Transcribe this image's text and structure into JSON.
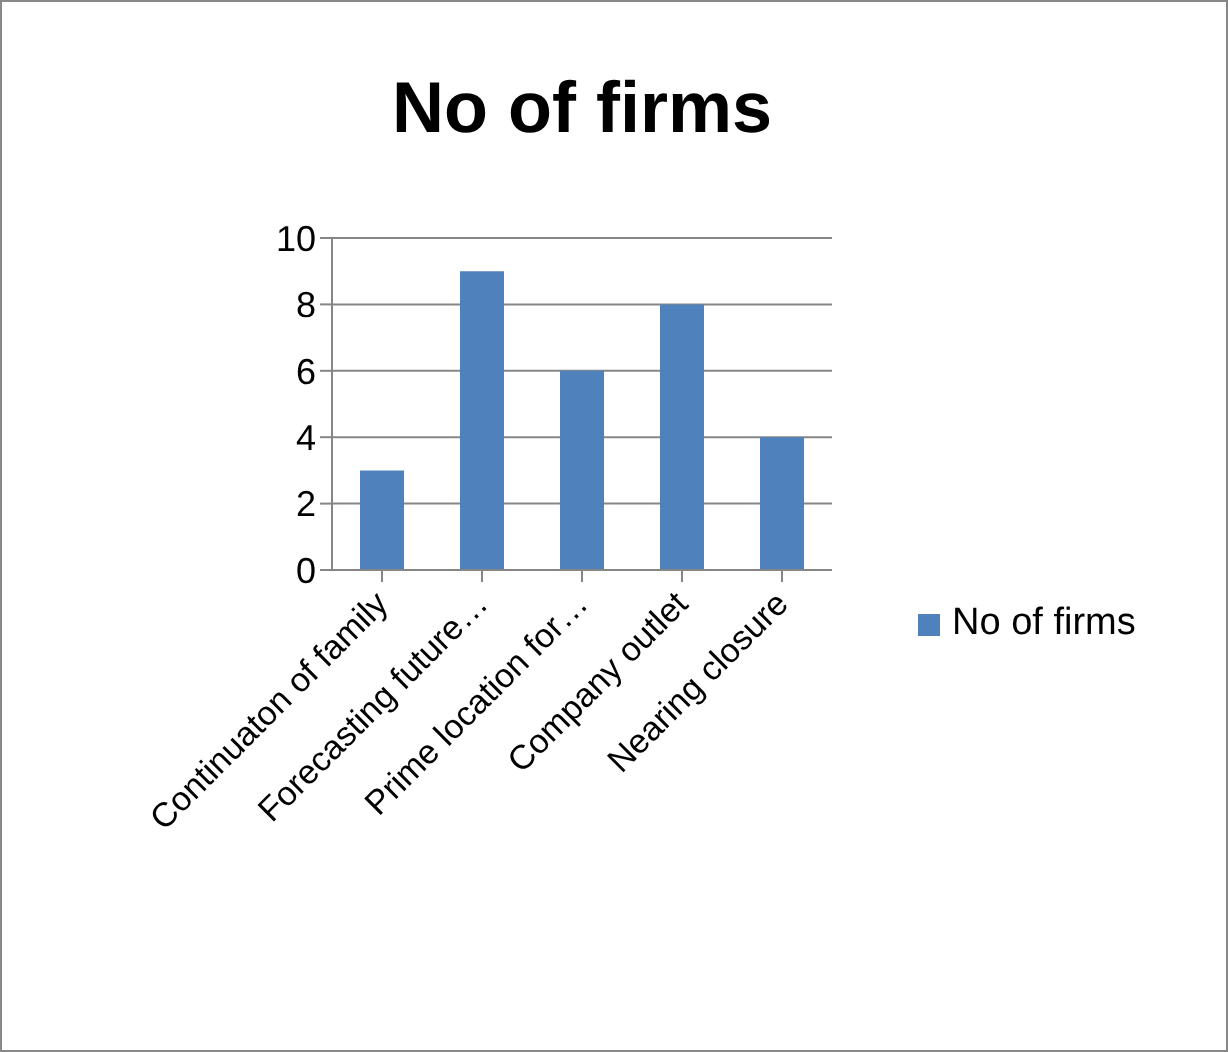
{
  "chart_data": {
    "type": "bar",
    "title": "No of firms",
    "categories": [
      "Continuaton of family",
      "Forecasting future…",
      "Prime location for…",
      "Company outlet",
      "Nearing closure"
    ],
    "series": [
      {
        "name": "No of firms",
        "color": "#4f81bd",
        "values": [
          3,
          9,
          6,
          8,
          4
        ]
      }
    ],
    "ylim": [
      0,
      10
    ],
    "yticks": [
      0,
      2,
      4,
      6,
      8,
      10
    ],
    "grid": "y",
    "legend": "right"
  }
}
